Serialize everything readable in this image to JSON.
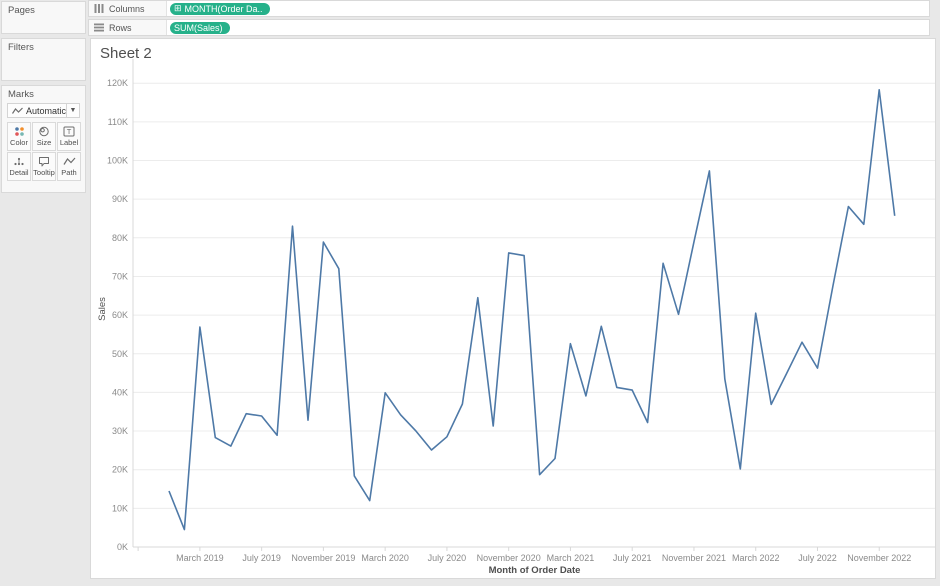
{
  "app": {
    "background": "#e8e8e8",
    "accent_green": "#26b18a",
    "line_color": "#4e79a7"
  },
  "left_panel": {
    "pages": {
      "label": "Pages"
    },
    "filters": {
      "label": "Filters"
    },
    "marks": {
      "label": "Marks",
      "mark_type": "Automatic",
      "buttons": [
        {
          "label": "Color",
          "icon": "color-dots-icon"
        },
        {
          "label": "Size",
          "icon": "size-circles-icon"
        },
        {
          "label": "Label",
          "icon": "label-t-icon"
        },
        {
          "label": "Detail",
          "icon": "detail-dots-icon"
        },
        {
          "label": "Tooltip",
          "icon": "tooltip-bubble-icon"
        },
        {
          "label": "Path",
          "icon": "path-line-icon"
        }
      ],
      "color_dot_colors": [
        "#4e79a7",
        "#f28e2b",
        "#e15759",
        "#76b7b2"
      ]
    }
  },
  "shelves": {
    "columns": {
      "label": "Columns",
      "pill": "MONTH(Order Da..",
      "pill_color": "#26b18a"
    },
    "rows": {
      "label": "Rows",
      "pill": "SUM(Sales)",
      "pill_color": "#26b18a"
    }
  },
  "sheet": {
    "title": "Sheet 2"
  },
  "chart_data": {
    "type": "line",
    "title": "Sheet 2",
    "xlabel": "Month of Order Date",
    "ylabel": "Sales",
    "unit": "USD",
    "ylim": [
      0,
      120000
    ],
    "grid": "horizontal",
    "ytick_values": [
      0,
      10000,
      20000,
      30000,
      40000,
      50000,
      60000,
      70000,
      80000,
      90000,
      100000,
      110000,
      120000
    ],
    "ytick_labels": [
      "0K",
      "10K",
      "20K",
      "30K",
      "40K",
      "50K",
      "60K",
      "70K",
      "80K",
      "90K",
      "100K",
      "110K",
      "120K"
    ],
    "xtick_month_indices": [
      -2,
      2,
      6,
      10,
      14,
      18,
      22,
      26,
      30,
      34,
      38,
      42,
      46
    ],
    "xtick_labels": [
      "",
      "March 2019",
      "July 2019",
      "November 2019",
      "March 2020",
      "July 2020",
      "November 2020",
      "March 2021",
      "July 2021",
      "November 2021",
      "March 2022",
      "July 2022",
      "November 2022"
    ],
    "x": [
      "January 2019",
      "February 2019",
      "March 2019",
      "April 2019",
      "May 2019",
      "June 2019",
      "July 2019",
      "August 2019",
      "September 2019",
      "October 2019",
      "November 2019",
      "December 2019",
      "January 2020",
      "February 2020",
      "March 2020",
      "April 2020",
      "May 2020",
      "June 2020",
      "July 2020",
      "August 2020",
      "September 2020",
      "October 2020",
      "November 2020",
      "December 2020",
      "January 2021",
      "February 2021",
      "March 2021",
      "April 2021",
      "May 2021",
      "June 2021",
      "July 2021",
      "August 2021",
      "September 2021",
      "October 2021",
      "November 2021",
      "December 2021",
      "January 2022",
      "February 2022",
      "March 2022",
      "April 2022",
      "May 2022",
      "June 2022",
      "July 2022",
      "August 2022",
      "September 2022",
      "October 2022",
      "November 2022",
      "December 2022"
    ],
    "values": [
      14500,
      4500,
      56900,
      28300,
      26100,
      34500,
      33900,
      28900,
      83000,
      32800,
      78900,
      72000,
      18400,
      12000,
      39900,
      34200,
      30000,
      25100,
      28500,
      37000,
      64500,
      31300,
      76100,
      75400,
      18700,
      22900,
      52600,
      39100,
      57100,
      41300,
      40600,
      32200,
      73400,
      60200,
      79000,
      97300,
      43500,
      20200,
      60500,
      36900,
      44900,
      53000,
      46300,
      67500,
      88100,
      83500,
      118300,
      85700
    ]
  }
}
